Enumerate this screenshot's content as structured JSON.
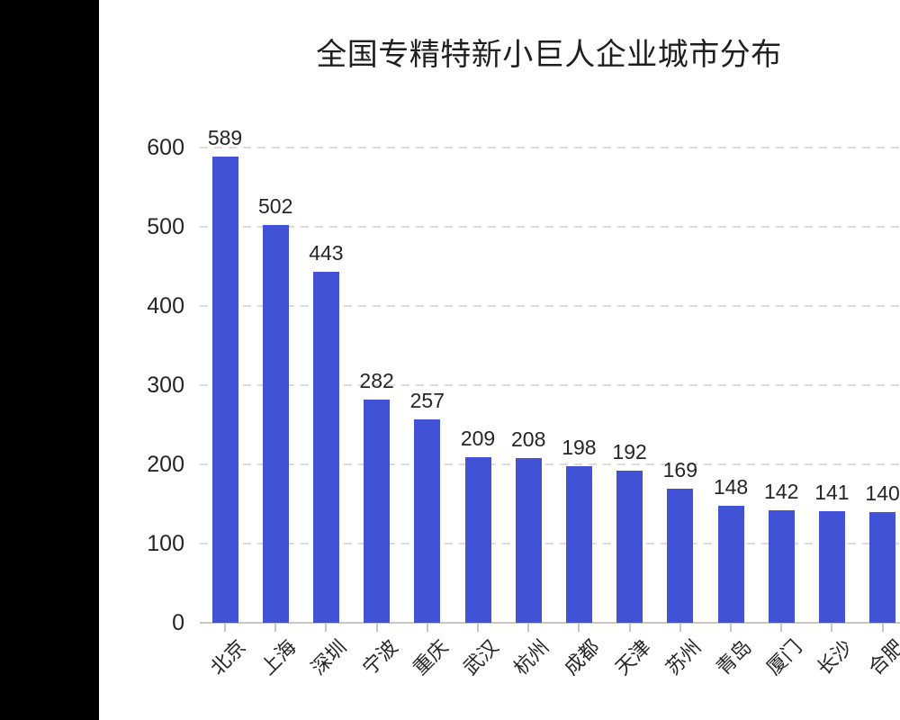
{
  "window": {
    "background": "#ffffff",
    "left_panel_color": "#000000"
  },
  "chart_data": {
    "type": "bar",
    "title": "全国专精特新小巨人企业城市分布",
    "categories": [
      "北京",
      "上海",
      "深圳",
      "宁波",
      "重庆",
      "武汉",
      "杭州",
      "成都",
      "天津",
      "苏州",
      "青岛",
      "厦门",
      "长沙",
      "合肥"
    ],
    "values": [
      589,
      502,
      443,
      282,
      257,
      209,
      208,
      198,
      192,
      169,
      148,
      142,
      141,
      140
    ],
    "xlabel": "",
    "ylabel": "",
    "yticks": [
      0,
      100,
      200,
      300,
      400,
      500,
      600
    ],
    "ylim": [
      0,
      620
    ],
    "grid": true,
    "grid_style": "dashed",
    "legend": "none",
    "x_tick_rotation": 45,
    "value_labels": true,
    "colors": {
      "bar": "#4252d6",
      "text": "#262626",
      "title_text": "#1f1f1f",
      "gridline": "#dcdcdc",
      "axis_line": "#c6c6c6"
    }
  }
}
